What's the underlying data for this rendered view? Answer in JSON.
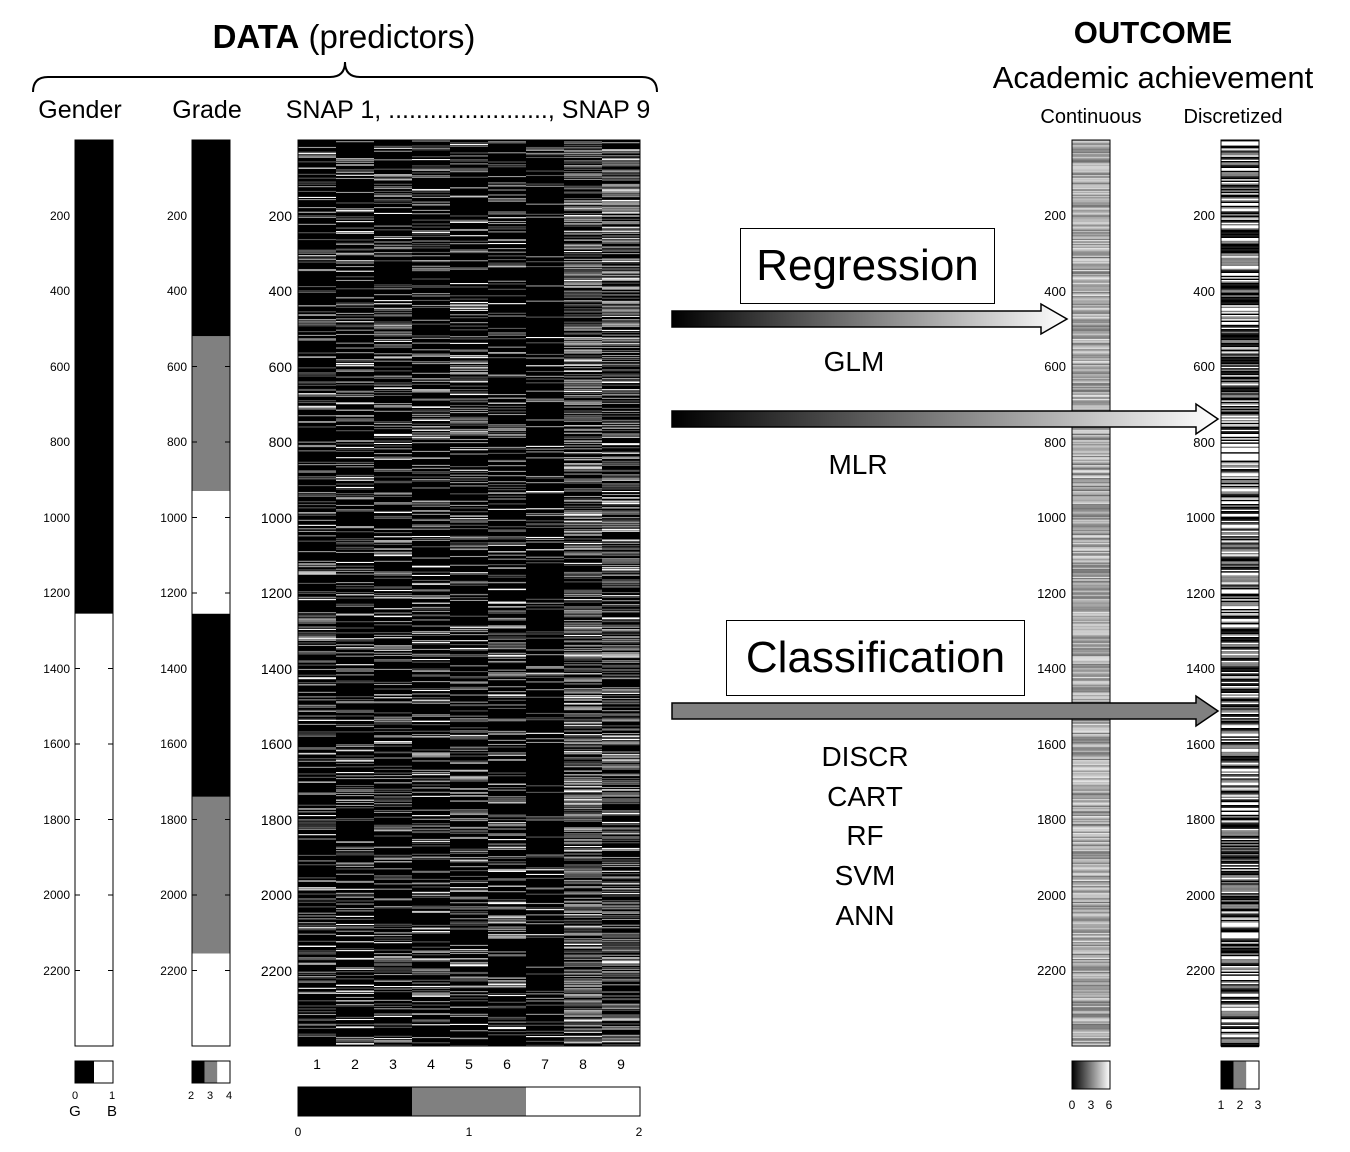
{
  "header": {
    "data_title_bold": "DATA",
    "data_title_rest": "(predictors)",
    "outcome_title": "OUTCOME",
    "outcome_subtitle": "Academic achievement"
  },
  "columns": {
    "gender": "Gender",
    "grade": "Grade",
    "snap": "SNAP 1, ......................., SNAP 9",
    "continuous": "Continuous",
    "discretized": "Discretized"
  },
  "row_ticks": [
    "200",
    "400",
    "600",
    "800",
    "1000",
    "1200",
    "1400",
    "1600",
    "1800",
    "2000",
    "2200"
  ],
  "snap_x_ticks": [
    "1",
    "2",
    "3",
    "4",
    "5",
    "6",
    "7",
    "8",
    "9"
  ],
  "colorbars": {
    "gender": {
      "ticks": [
        "0",
        "1"
      ],
      "labels": [
        "G",
        "B"
      ]
    },
    "grade": {
      "ticks": [
        "2",
        "3",
        "4"
      ]
    },
    "snap": {
      "ticks": [
        "0",
        "1",
        "2"
      ]
    },
    "continuous": {
      "ticks": [
        "0",
        "3",
        "6"
      ]
    },
    "discretized": {
      "ticks": [
        "1",
        "2",
        "3"
      ]
    }
  },
  "methods": {
    "regression_label": "Regression",
    "regression_items": [
      "GLM",
      "MLR"
    ],
    "classification_label": "Classification",
    "classification_items": [
      "DISCR",
      "CART",
      "RF",
      "SVM",
      "ANN"
    ]
  },
  "colors": {
    "black": "#000000",
    "gray": "#808080",
    "white": "#ffffff"
  },
  "segments": {
    "gender": [
      {
        "from": 0,
        "to": 1255,
        "value": "G"
      },
      {
        "from": 1255,
        "to": 2400,
        "value": "B"
      }
    ],
    "grade": [
      {
        "from": 0,
        "to": 520,
        "value": 2
      },
      {
        "from": 520,
        "to": 930,
        "value": 3
      },
      {
        "from": 930,
        "to": 1255,
        "value": 4
      },
      {
        "from": 1255,
        "to": 1740,
        "value": 2
      },
      {
        "from": 1740,
        "to": 2155,
        "value": 3
      },
      {
        "from": 2155,
        "to": 2400,
        "value": 4
      }
    ]
  }
}
